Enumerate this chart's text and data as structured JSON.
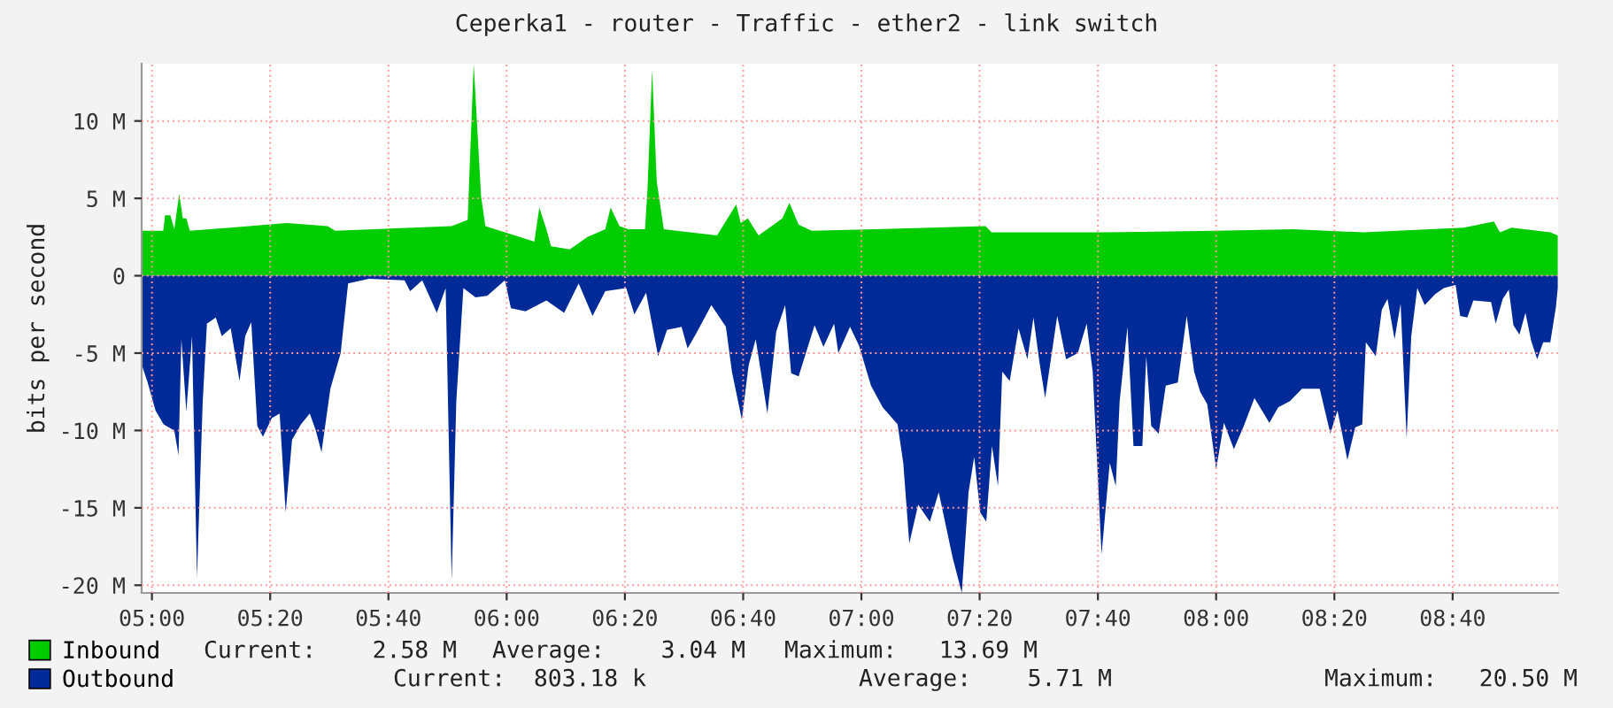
{
  "chart_data": {
    "type": "area",
    "title": "Ceperka1 - router - Traffic - ether2 - link switch",
    "ylabel": "bits per second",
    "xlim": [
      4.971,
      8.964
    ],
    "ylim": [
      -20.5,
      13.7
    ],
    "xticks": [
      {
        "value": 5,
        "label": "05:00"
      },
      {
        "value": 5.3333,
        "label": "05:20"
      },
      {
        "value": 5.6667,
        "label": "05:40"
      },
      {
        "value": 6,
        "label": "06:00"
      },
      {
        "value": 6.3333,
        "label": "06:20"
      },
      {
        "value": 6.6667,
        "label": "06:40"
      },
      {
        "value": 7,
        "label": "07:00"
      },
      {
        "value": 7.3333,
        "label": "07:20"
      },
      {
        "value": 7.6667,
        "label": "07:40"
      },
      {
        "value": 8,
        "label": "08:00"
      },
      {
        "value": 8.3333,
        "label": "08:20"
      },
      {
        "value": 8.6667,
        "label": "08:40"
      }
    ],
    "yticks": [
      {
        "value": -20,
        "label": "-20 M"
      },
      {
        "value": -15,
        "label": "-15 M"
      },
      {
        "value": -10,
        "label": "-10 M"
      },
      {
        "value": -5,
        "label": "-5 M"
      },
      0,
      {
        "value": 5,
        "label": "5 M"
      },
      {
        "value": 10,
        "label": "10 M"
      }
    ],
    "grid": true,
    "legend": "bottom left",
    "series": [
      {
        "name": "Inbound",
        "color": "#00cc00",
        "x": [
          4.972,
          5.032,
          5.037,
          5.052,
          5.063,
          5.077,
          5.087,
          5.097,
          5.107,
          5.38,
          5.495,
          5.517,
          5.845,
          5.89,
          5.907,
          5.928,
          5.94,
          5.995,
          6.078,
          6.092,
          6.112,
          6.125,
          6.178,
          6.228,
          6.278,
          6.293,
          6.318,
          6.343,
          6.39,
          6.397,
          6.41,
          6.423,
          6.443,
          6.593,
          6.647,
          6.66,
          6.68,
          6.71,
          6.777,
          6.797,
          6.823,
          6.86,
          7.35,
          7.367,
          7.667,
          8.0,
          8.217,
          8.417,
          8.697,
          8.783,
          8.8,
          8.833,
          8.942,
          8.963
        ],
        "values": [
          2.9,
          2.9,
          3.9,
          3.9,
          3.0,
          5.3,
          3.7,
          3.7,
          2.9,
          3.4,
          3.2,
          2.9,
          3.2,
          3.6,
          13.7,
          5.1,
          3.2,
          2.8,
          2.2,
          4.4,
          3.0,
          1.9,
          1.7,
          2.5,
          3.0,
          4.4,
          3.2,
          3.0,
          3.0,
          5.6,
          13.3,
          6.1,
          3.0,
          2.6,
          4.6,
          3.4,
          3.7,
          2.6,
          3.7,
          4.7,
          3.3,
          2.9,
          3.2,
          2.8,
          2.8,
          2.9,
          3.0,
          2.8,
          3.1,
          3.5,
          2.8,
          3.1,
          2.8,
          2.6
        ]
      },
      {
        "name": "Outbound",
        "color": "#002a97",
        "x": [
          4.972,
          4.988,
          5.01,
          5.033,
          5.063,
          5.075,
          5.083,
          5.097,
          5.113,
          5.127,
          5.143,
          5.155,
          5.18,
          5.197,
          5.222,
          5.247,
          5.263,
          5.28,
          5.297,
          5.313,
          5.338,
          5.36,
          5.377,
          5.395,
          5.42,
          5.445,
          5.462,
          5.478,
          5.503,
          5.532,
          5.553,
          5.612,
          5.712,
          5.728,
          5.762,
          5.803,
          5.828,
          5.845,
          5.858,
          5.878,
          5.912,
          5.945,
          5.995,
          6.012,
          6.053,
          6.112,
          6.162,
          6.203,
          6.242,
          6.278,
          6.337,
          6.36,
          6.393,
          6.427,
          6.452,
          6.493,
          6.51,
          6.535,
          6.577,
          6.618,
          6.635,
          6.663,
          6.682,
          6.702,
          6.735,
          6.76,
          6.785,
          6.802,
          6.823,
          6.868,
          6.893,
          6.923,
          6.935,
          6.968,
          6.993,
          7.027,
          7.06,
          7.102,
          7.118,
          7.135,
          7.16,
          7.193,
          7.218,
          7.257,
          7.283,
          7.302,
          7.318,
          7.335,
          7.352,
          7.368,
          7.385,
          7.397,
          7.418,
          7.443,
          7.468,
          7.485,
          7.502,
          7.518,
          7.552,
          7.577,
          7.61,
          7.635,
          7.652,
          7.677,
          7.7,
          7.717,
          7.728,
          7.75,
          7.767,
          7.792,
          7.803,
          7.817,
          7.838,
          7.858,
          7.892,
          7.917,
          7.938,
          7.955,
          7.975,
          8.0,
          8.022,
          8.05,
          8.078,
          8.108,
          8.15,
          8.175,
          8.208,
          8.242,
          8.292,
          8.322,
          8.342,
          8.37,
          8.392,
          8.412,
          8.422,
          8.45,
          8.467,
          8.483,
          8.503,
          8.52,
          8.537,
          8.55,
          8.567,
          8.588,
          8.617,
          8.642,
          8.675,
          8.688,
          8.708,
          8.725,
          8.775,
          8.788,
          8.808,
          8.825,
          8.838,
          8.855,
          8.872,
          8.888,
          8.905,
          8.922,
          8.942,
          8.958,
          8.963
        ],
        "values": [
          -5.8,
          -6.9,
          -8.7,
          -9.6,
          -10.0,
          -11.6,
          -4.1,
          -8.8,
          -3.9,
          -19.5,
          -8.2,
          -3.1,
          -2.7,
          -3.9,
          -3.4,
          -6.8,
          -3.9,
          -3.0,
          -9.7,
          -10.4,
          -9.2,
          -8.9,
          -15.3,
          -10.6,
          -9.6,
          -8.9,
          -10.0,
          -11.4,
          -7.3,
          -5.0,
          -0.5,
          -0.2,
          -0.3,
          -1.0,
          -0.3,
          -2.4,
          -0.8,
          -19.7,
          -8.1,
          -0.8,
          -1.4,
          -1.3,
          -0.3,
          -2.1,
          -2.3,
          -1.6,
          -2.4,
          -0.5,
          -2.6,
          -1.0,
          -0.8,
          -2.5,
          -1.1,
          -5.2,
          -3.5,
          -3.3,
          -4.7,
          -3.7,
          -1.9,
          -3.3,
          -6.2,
          -9.3,
          -5.8,
          -4.1,
          -8.9,
          -3.6,
          -1.9,
          -6.3,
          -6.5,
          -3.2,
          -4.6,
          -3.1,
          -5.0,
          -3.3,
          -4.5,
          -7.1,
          -8.5,
          -9.6,
          -12.1,
          -17.3,
          -14.8,
          -15.9,
          -14.0,
          -18.2,
          -20.5,
          -14.0,
          -11.7,
          -15.3,
          -15.9,
          -11.0,
          -13.6,
          -6.2,
          -6.8,
          -3.4,
          -5.4,
          -2.7,
          -5.6,
          -7.9,
          -2.6,
          -5.4,
          -5.0,
          -3.1,
          -6.2,
          -18.0,
          -12.1,
          -13.6,
          -8.1,
          -3.3,
          -11.0,
          -11.0,
          -5.2,
          -9.7,
          -10.2,
          -7.1,
          -6.9,
          -2.6,
          -6.2,
          -7.5,
          -8.3,
          -12.5,
          -9.5,
          -11.2,
          -9.7,
          -7.9,
          -9.5,
          -8.5,
          -8.1,
          -7.3,
          -7.3,
          -10.2,
          -8.7,
          -11.9,
          -9.8,
          -9.6,
          -4.3,
          -5.2,
          -2.2,
          -1.5,
          -4.1,
          -1.8,
          -10.5,
          -3.9,
          -0.8,
          -1.9,
          -1.2,
          -0.8,
          -0.6,
          -2.6,
          -2.7,
          -1.6,
          -1.7,
          -3.1,
          -1.5,
          -0.9,
          -3.2,
          -3.8,
          -2.4,
          -4.2,
          -5.4,
          -4.3,
          -4.3,
          -2.0,
          -0.8
        ]
      }
    ],
    "annotations": [
      "Current:    2.58 M",
      "Average:    3.04 M",
      "Maximum:   13.69 M",
      "Current:  803.18 k",
      "Average:    5.71 M",
      "Maximum:   20.50 M"
    ]
  }
}
